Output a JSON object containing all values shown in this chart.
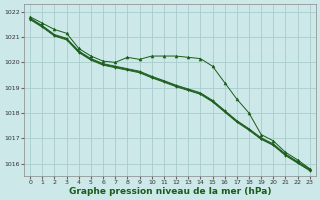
{
  "background_color": "#cce8e8",
  "grid_color": "#aacccc",
  "line_color": "#1a5c1a",
  "xlabel": "Graphe pression niveau de la mer (hPa)",
  "xlabel_fontsize": 6.5,
  "ylim": [
    1015.5,
    1022.3
  ],
  "xlim": [
    -0.5,
    23.5
  ],
  "yticks": [
    1016,
    1017,
    1018,
    1019,
    1020,
    1021,
    1022
  ],
  "xticks": [
    0,
    1,
    2,
    3,
    4,
    5,
    6,
    7,
    8,
    9,
    10,
    11,
    12,
    13,
    14,
    15,
    16,
    17,
    18,
    19,
    20,
    21,
    22,
    23
  ],
  "s1": [
    1021.8,
    1021.55,
    1021.3,
    1021.15,
    1020.55,
    1020.25,
    1020.05,
    1020.0,
    1020.2,
    1020.12,
    1020.25,
    1020.25,
    1020.25,
    1020.2,
    1020.15,
    1019.85,
    1019.2,
    1018.55,
    1018.0,
    1017.15,
    1016.9,
    1016.45,
    1016.15,
    1015.8
  ],
  "s2": [
    1021.75,
    1021.45,
    1021.1,
    1020.95,
    1020.45,
    1020.15,
    1019.95,
    1019.85,
    1019.75,
    1019.65,
    1019.45,
    1019.28,
    1019.1,
    1018.95,
    1018.8,
    1018.5,
    1018.1,
    1017.7,
    1017.38,
    1017.02,
    1016.78,
    1016.38,
    1016.08,
    1015.78
  ],
  "s3": [
    1021.72,
    1021.42,
    1021.07,
    1020.92,
    1020.42,
    1020.12,
    1019.92,
    1019.82,
    1019.72,
    1019.62,
    1019.42,
    1019.25,
    1019.07,
    1018.92,
    1018.77,
    1018.47,
    1018.07,
    1017.67,
    1017.35,
    1016.99,
    1016.75,
    1016.35,
    1016.05,
    1015.75
  ],
  "s4": [
    1021.69,
    1021.39,
    1021.04,
    1020.89,
    1020.39,
    1020.09,
    1019.89,
    1019.79,
    1019.69,
    1019.59,
    1019.39,
    1019.22,
    1019.04,
    1018.89,
    1018.74,
    1018.44,
    1018.04,
    1017.64,
    1017.32,
    1016.96,
    1016.72,
    1016.32,
    1016.02,
    1015.72
  ]
}
